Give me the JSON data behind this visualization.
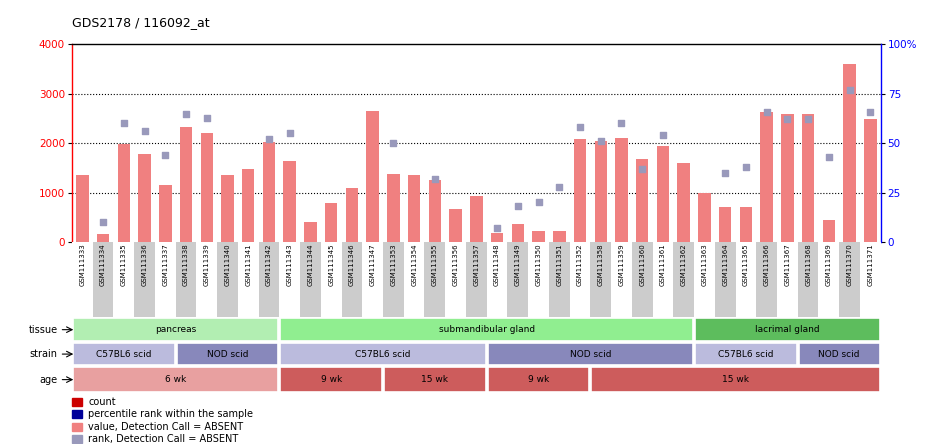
{
  "title": "GDS2178 / 116092_at",
  "samples": [
    "GSM111333",
    "GSM111334",
    "GSM111335",
    "GSM111336",
    "GSM111337",
    "GSM111338",
    "GSM111339",
    "GSM111340",
    "GSM111341",
    "GSM111342",
    "GSM111343",
    "GSM111344",
    "GSM111345",
    "GSM111346",
    "GSM111347",
    "GSM111353",
    "GSM111354",
    "GSM111355",
    "GSM111356",
    "GSM111357",
    "GSM111348",
    "GSM111349",
    "GSM111350",
    "GSM111351",
    "GSM111352",
    "GSM111358",
    "GSM111359",
    "GSM111360",
    "GSM111361",
    "GSM111362",
    "GSM111363",
    "GSM111364",
    "GSM111365",
    "GSM111366",
    "GSM111367",
    "GSM111368",
    "GSM111369",
    "GSM111370",
    "GSM111371"
  ],
  "bar_values": [
    1360,
    170,
    1980,
    1790,
    1150,
    2320,
    2200,
    1360,
    1480,
    2020,
    1640,
    410,
    790,
    1090,
    2660,
    1380,
    1360,
    1250,
    670,
    940,
    180,
    370,
    230,
    230,
    2090,
    2040,
    2100,
    1680,
    1950,
    1590,
    1000,
    700,
    700,
    2640,
    2600,
    2600,
    450,
    3600,
    2480
  ],
  "rank_values": [
    null,
    10,
    60,
    56,
    44,
    65,
    63,
    null,
    null,
    52,
    55,
    null,
    null,
    null,
    null,
    50,
    null,
    32,
    null,
    null,
    7,
    18,
    20,
    28,
    58,
    51,
    60,
    37,
    54,
    null,
    null,
    35,
    38,
    66,
    62,
    62,
    43,
    77,
    66
  ],
  "bar_color": "#F08080",
  "rank_color": "#9999BB",
  "tissue_groups": [
    {
      "label": "pancreas",
      "start": 0,
      "end": 9,
      "color": "#B2EEB2"
    },
    {
      "label": "submandibular gland",
      "start": 10,
      "end": 29,
      "color": "#90EE90"
    },
    {
      "label": "lacrimal gland",
      "start": 30,
      "end": 38,
      "color": "#5DBD5D"
    }
  ],
  "strain_groups": [
    {
      "label": "C57BL6 scid",
      "start": 0,
      "end": 4,
      "color": "#BBBBDD"
    },
    {
      "label": "NOD scid",
      "start": 5,
      "end": 9,
      "color": "#8888BB"
    },
    {
      "label": "C57BL6 scid",
      "start": 10,
      "end": 19,
      "color": "#BBBBDD"
    },
    {
      "label": "NOD scid",
      "start": 20,
      "end": 29,
      "color": "#8888BB"
    },
    {
      "label": "C57BL6 scid",
      "start": 30,
      "end": 34,
      "color": "#BBBBDD"
    },
    {
      "label": "NOD scid",
      "start": 35,
      "end": 38,
      "color": "#8888BB"
    }
  ],
  "age_groups": [
    {
      "label": "6 wk",
      "start": 0,
      "end": 9,
      "color": "#E8A0A0"
    },
    {
      "label": "9 wk",
      "start": 10,
      "end": 14,
      "color": "#CD5C5C"
    },
    {
      "label": "15 wk",
      "start": 15,
      "end": 19,
      "color": "#CD5C5C"
    },
    {
      "label": "9 wk",
      "start": 20,
      "end": 24,
      "color": "#CD5C5C"
    },
    {
      "label": "15 wk",
      "start": 25,
      "end": 38,
      "color": "#CD5C5C"
    }
  ],
  "legend_items": [
    {
      "label": "count",
      "color": "#CC0000"
    },
    {
      "label": "percentile rank within the sample",
      "color": "#000099"
    },
    {
      "label": "value, Detection Call = ABSENT",
      "color": "#F08080"
    },
    {
      "label": "rank, Detection Call = ABSENT",
      "color": "#9999BB"
    }
  ]
}
